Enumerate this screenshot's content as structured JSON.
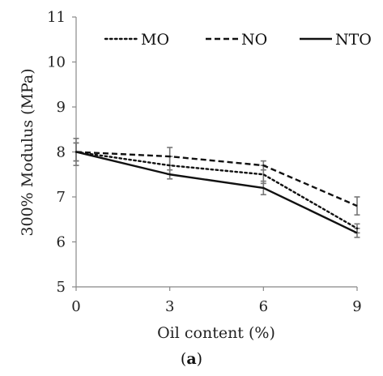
{
  "chart_data": {
    "type": "line",
    "x": [
      0,
      3,
      6,
      9
    ],
    "xlabel": "Oil content (%)",
    "ylabel": "300% Modulus (MPa)",
    "xlim": [
      0,
      9
    ],
    "ylim": [
      5,
      11
    ],
    "xticks": [
      "0",
      "3",
      "6",
      "9"
    ],
    "yticks": [
      "5",
      "6",
      "7",
      "8",
      "9",
      "10",
      "11"
    ],
    "grid": false,
    "legend_position": "top",
    "series": [
      {
        "name": "MO",
        "style": "dotted",
        "values": [
          8.0,
          7.7,
          7.5,
          6.3
        ],
        "errors": [
          0.3,
          0.2,
          0.2,
          0.1
        ]
      },
      {
        "name": "NO",
        "style": "dashed",
        "values": [
          8.0,
          7.9,
          7.7,
          6.8
        ],
        "errors": [
          0.2,
          0.2,
          0.1,
          0.2
        ]
      },
      {
        "name": "NTO",
        "style": "solid",
        "values": [
          8.0,
          7.5,
          7.2,
          6.2
        ],
        "errors": [
          0.2,
          0.1,
          0.15,
          0.1
        ]
      }
    ],
    "line_color": "#111111",
    "error_bar_color": "#777777"
  },
  "caption": {
    "open": "(",
    "letter": "a",
    "close": ")"
  }
}
